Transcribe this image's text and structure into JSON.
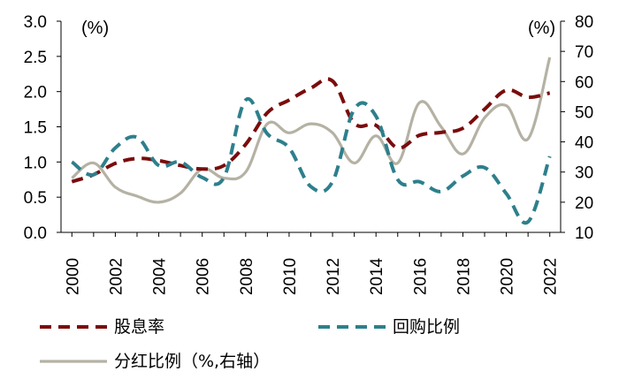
{
  "chart_data": {
    "type": "line",
    "x": [
      2000,
      2001,
      2002,
      2003,
      2004,
      2005,
      2006,
      2007,
      2008,
      2009,
      2010,
      2011,
      2012,
      2013,
      2014,
      2015,
      2016,
      2017,
      2018,
      2019,
      2020,
      2021,
      2022
    ],
    "x_tick_labels": [
      "2000",
      "2002",
      "2004",
      "2006",
      "2008",
      "2010",
      "2012",
      "2014",
      "2016",
      "2018",
      "2020",
      "2022"
    ],
    "y_left": {
      "unit_label": "(%)",
      "range": [
        0.0,
        3.0
      ],
      "ticks": [
        "0.0",
        "0.5",
        "1.0",
        "1.5",
        "2.0",
        "2.5",
        "3.0"
      ]
    },
    "y_right": {
      "unit_label": "(%)",
      "range": [
        10,
        80
      ],
      "ticks": [
        "10",
        "20",
        "30",
        "40",
        "50",
        "60",
        "70",
        "80"
      ]
    },
    "grid": false,
    "legend_position": "bottom",
    "series": [
      {
        "name": "股息率",
        "axis": "left",
        "style": "dashed",
        "color": "#7a0c0c",
        "values": [
          0.72,
          0.82,
          0.98,
          1.05,
          1.02,
          0.95,
          0.9,
          0.95,
          1.25,
          1.7,
          1.88,
          2.05,
          2.15,
          1.55,
          1.52,
          1.2,
          1.38,
          1.42,
          1.48,
          1.75,
          2.02,
          1.92,
          1.98
        ]
      },
      {
        "name": "回购比例",
        "axis": "left",
        "style": "dashed",
        "color": "#2e7f8c",
        "values": [
          1.0,
          0.82,
          1.2,
          1.35,
          0.95,
          1.0,
          0.78,
          0.78,
          1.88,
          1.4,
          1.2,
          0.65,
          0.72,
          1.75,
          1.65,
          0.75,
          0.72,
          0.58,
          0.8,
          0.92,
          0.55,
          0.15,
          1.08
        ]
      },
      {
        "name": "分红比例（%,右轴）",
        "axis": "right",
        "style": "solid",
        "color": "#b5b2a4",
        "values": [
          28,
          33,
          25,
          22,
          20,
          23,
          31,
          28,
          30,
          46,
          43,
          46,
          43,
          33,
          42,
          33,
          53,
          45,
          36,
          48,
          52,
          41,
          68
        ]
      }
    ]
  }
}
